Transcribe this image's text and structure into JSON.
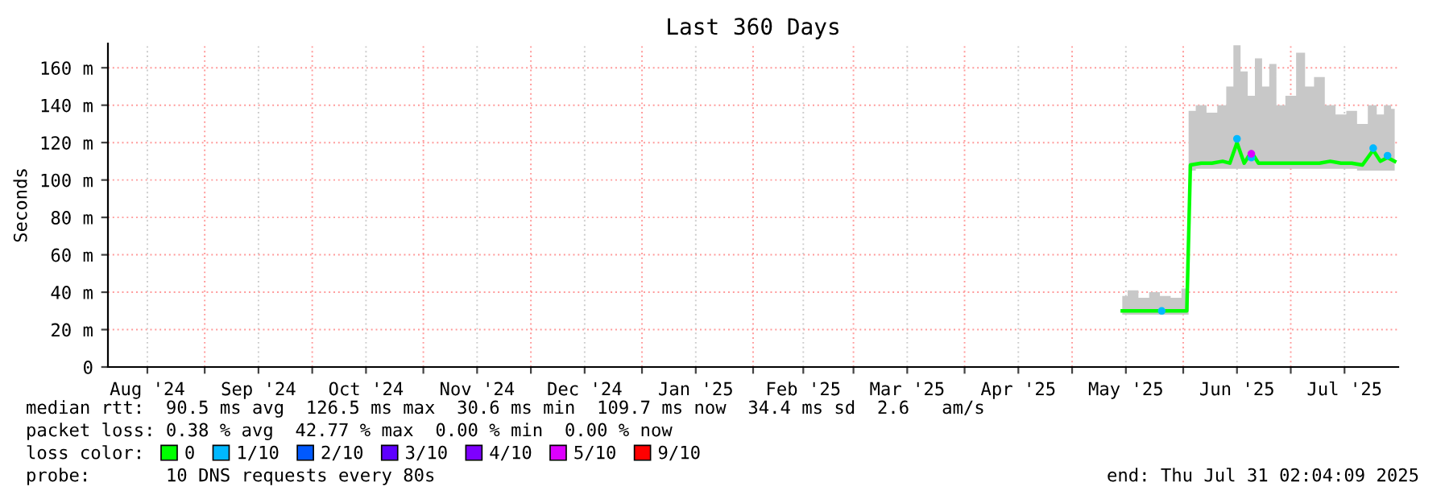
{
  "chart_data": {
    "type": "line",
    "title": "Last 360 Days",
    "ylabel": "Seconds",
    "legend_title": "loss color:",
    "legend": "bottom",
    "grid": true,
    "xlim": [
      "2024-08-05",
      "2025-07-31"
    ],
    "xticks": [
      {
        "value": "2024-08-16",
        "label": "Aug '24"
      },
      {
        "value": "2024-09-01",
        "label": null
      },
      {
        "value": "2024-09-16",
        "label": "Sep '24"
      },
      {
        "value": "2024-10-01",
        "label": null
      },
      {
        "value": "2024-10-16",
        "label": "Oct '24"
      },
      {
        "value": "2024-11-01",
        "label": null
      },
      {
        "value": "2024-11-16",
        "label": "Nov '24"
      },
      {
        "value": "2024-12-01",
        "label": null
      },
      {
        "value": "2024-12-16",
        "label": "Dec '24"
      },
      {
        "value": "2025-01-01",
        "label": null
      },
      {
        "value": "2025-01-16",
        "label": "Jan '25"
      },
      {
        "value": "2025-02-01",
        "label": null
      },
      {
        "value": "2025-02-15",
        "label": "Feb '25"
      },
      {
        "value": "2025-03-01",
        "label": null
      },
      {
        "value": "2025-03-16",
        "label": "Mar '25"
      },
      {
        "value": "2025-04-01",
        "label": null
      },
      {
        "value": "2025-04-16",
        "label": "Apr '25"
      },
      {
        "value": "2025-05-01",
        "label": null
      },
      {
        "value": "2025-05-16",
        "label": "May '25"
      },
      {
        "value": "2025-06-01",
        "label": null
      },
      {
        "value": "2025-06-16",
        "label": "Jun '25"
      },
      {
        "value": "2025-07-01",
        "label": null
      },
      {
        "value": "2025-07-16",
        "label": "Jul '25"
      }
    ],
    "ylim": [
      0,
      173
    ],
    "yticks": [
      0,
      {
        "value": 20,
        "label": "20 m"
      },
      {
        "value": 40,
        "label": "40 m"
      },
      {
        "value": 60,
        "label": "60 m"
      },
      {
        "value": 80,
        "label": "80 m"
      },
      {
        "value": 100,
        "label": "100 m"
      },
      {
        "value": 120,
        "label": "120 m"
      },
      {
        "value": 140,
        "label": "140 m"
      },
      {
        "value": 160,
        "label": "160 m"
      }
    ],
    "series": [
      {
        "name": "0",
        "color": "#00ff00",
        "x": [
          "2025-05-15",
          "2025-05-18",
          "2025-05-21",
          "2025-05-24",
          "2025-05-27",
          "2025-05-30",
          "2025-06-02",
          "2025-06-03",
          "2025-06-06",
          "2025-06-09",
          "2025-06-12",
          "2025-06-14",
          "2025-06-16",
          "2025-06-18",
          "2025-06-20",
          "2025-06-22",
          "2025-06-24",
          "2025-06-26",
          "2025-06-28",
          "2025-07-01",
          "2025-07-04",
          "2025-07-06",
          "2025-07-09",
          "2025-07-12",
          "2025-07-15",
          "2025-07-18",
          "2025-07-21",
          "2025-07-24",
          "2025-07-26",
          "2025-07-28",
          "2025-07-30"
        ],
        "values": [
          30,
          30,
          30,
          30,
          30,
          30,
          30,
          108,
          109,
          109,
          110,
          109,
          120,
          109,
          115,
          109,
          109,
          109,
          109,
          109,
          109,
          109,
          109,
          110,
          109,
          109,
          108,
          116,
          110,
          112,
          110
        ],
        "lower": [
          28,
          28,
          28,
          28,
          28,
          28,
          28,
          105,
          106,
          106,
          106,
          106,
          106,
          106,
          106,
          106,
          106,
          106,
          106,
          106,
          106,
          106,
          106,
          106,
          106,
          106,
          105,
          105,
          105,
          105,
          105
        ],
        "upper": [
          38,
          41,
          37,
          40,
          38,
          37,
          42,
          137,
          140,
          136,
          140,
          150,
          172,
          158,
          145,
          165,
          150,
          162,
          140,
          145,
          168,
          150,
          155,
          140,
          135,
          137,
          130,
          140,
          135,
          140,
          138
        ]
      },
      {
        "name": "1/10",
        "color": "#00b8ff",
        "type": "scatter",
        "x": [
          "2025-05-26",
          "2025-06-16",
          "2025-06-20",
          "2025-07-24",
          "2025-07-28"
        ],
        "values": [
          30,
          122,
          112,
          117,
          113
        ]
      },
      {
        "name": "2/10",
        "color": "#0059ff"
      },
      {
        "name": "3/10",
        "color": "#5e00ff"
      },
      {
        "name": "4/10",
        "color": "#7e00ff"
      },
      {
        "name": "5/10",
        "color": "#dd00ff",
        "type": "scatter",
        "x": [
          "2025-06-20"
        ],
        "values": [
          114
        ]
      },
      {
        "name": "9/10",
        "color": "#ff0000"
      }
    ],
    "annotations": [
      "median rtt:  90.5 ms avg  126.5 ms max  30.6 ms min  109.7 ms now  34.4 ms sd  2.6   am/s",
      "packet loss: 0.38 % avg  42.77 % max  0.00 % min  0.00 % now",
      "probe:       10 DNS requests every 80s",
      "end: Thu Jul 31 02:04:09 2025"
    ]
  }
}
